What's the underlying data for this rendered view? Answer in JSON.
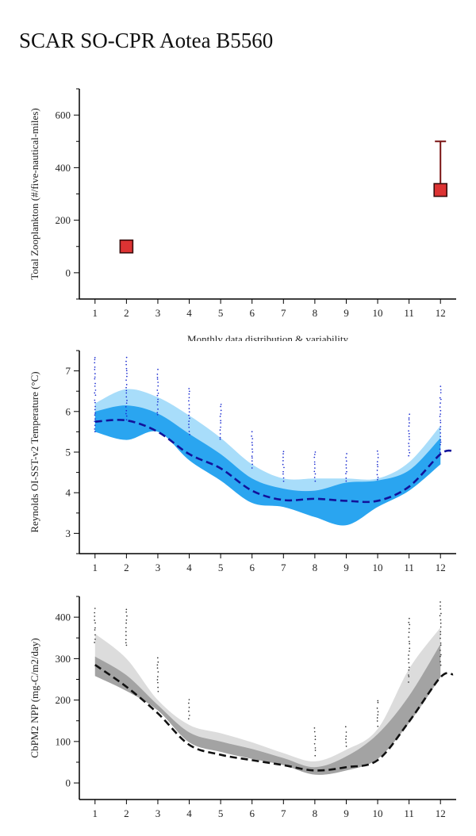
{
  "page": {
    "title": "SCAR SO-CPR Aotea B5560"
  },
  "chart_data": [
    {
      "type": "scatter",
      "ylabel": "Total Zooplankton (#/five-nautical-miles)",
      "xlabel": "Monthly data distribution & variability",
      "xticks": [
        1,
        2,
        3,
        4,
        5,
        6,
        7,
        8,
        9,
        10,
        11,
        12
      ],
      "yticks": [
        0,
        200,
        400,
        600
      ],
      "xlim": [
        0.5,
        12.5
      ],
      "ylim": [
        -100,
        700
      ],
      "points": [
        {
          "x": 2,
          "y": 100
        },
        {
          "x": 12,
          "y": 315,
          "error_upper": 500
        }
      ],
      "colors": {
        "marker": "#dd3333",
        "marker_edge": "#3a0e0e",
        "errorbar": "#7a1414"
      }
    },
    {
      "type": "area",
      "ylabel": "Reynolds OI-SST-v2 Temperature (°C)",
      "xticks": [
        1,
        2,
        3,
        4,
        5,
        6,
        7,
        8,
        9,
        10,
        11,
        12
      ],
      "yticks": [
        3,
        4,
        5,
        6,
        7
      ],
      "xlim": [
        0.5,
        12.5
      ],
      "ylim": [
        2.5,
        7.5
      ],
      "x": [
        1,
        2,
        3,
        4,
        5,
        6,
        7,
        8,
        9,
        10,
        11,
        12
      ],
      "series": [
        {
          "role": "outer-band",
          "lower": [
            5.5,
            5.3,
            5.5,
            4.8,
            4.3,
            3.75,
            3.65,
            3.4,
            3.2,
            3.65,
            4.05,
            4.7
          ],
          "upper": [
            6.2,
            6.55,
            6.35,
            5.9,
            5.35,
            4.7,
            4.35,
            4.35,
            4.35,
            4.35,
            4.75,
            5.65
          ]
        },
        {
          "role": "inner-band",
          "lower": [
            5.5,
            5.3,
            5.5,
            4.8,
            4.3,
            3.75,
            3.65,
            3.4,
            3.2,
            3.65,
            4.05,
            4.7
          ],
          "upper": [
            6.0,
            6.15,
            5.95,
            5.45,
            4.95,
            4.35,
            4.1,
            4.05,
            4.25,
            4.3,
            4.55,
            5.35
          ]
        },
        {
          "role": "mean",
          "values": [
            5.75,
            5.78,
            5.5,
            4.95,
            4.6,
            4.05,
            3.82,
            3.85,
            3.8,
            3.8,
            4.15,
            4.95
          ],
          "extension": {
            "x": 12.4,
            "y": 5.03
          }
        }
      ],
      "observations": [
        {
          "x": 1,
          "min": 5.5,
          "max": 7.35
        },
        {
          "x": 2,
          "min": 5.8,
          "max": 7.4
        },
        {
          "x": 3,
          "min": 5.9,
          "max": 7.05
        },
        {
          "x": 4,
          "min": 5.45,
          "max": 6.65
        },
        {
          "x": 5,
          "min": 5.3,
          "max": 6.2
        },
        {
          "x": 6,
          "min": 4.6,
          "max": 5.5
        },
        {
          "x": 7,
          "min": 4.3,
          "max": 5.1
        },
        {
          "x": 8,
          "min": 4.3,
          "max": 5.1
        },
        {
          "x": 9,
          "min": 4.3,
          "max": 4.95
        },
        {
          "x": 10,
          "min": 4.3,
          "max": 5.1
        },
        {
          "x": 11,
          "min": 4.9,
          "max": 5.95
        },
        {
          "x": 12,
          "min": 5.0,
          "max": 6.65
        }
      ],
      "colors": {
        "outer": "#a8ddfa",
        "inner": "#2aa5f0",
        "mean": "#12129a",
        "obs": "#1a2bd0"
      }
    },
    {
      "type": "area",
      "ylabel": "CbPM2 NPP (mg-C/m2/day)",
      "xticks": [
        1,
        2,
        3,
        4,
        5,
        6,
        7,
        8,
        9,
        10,
        11,
        12
      ],
      "yticks": [
        0,
        100,
        200,
        300,
        400
      ],
      "xlim": [
        0.5,
        12.5
      ],
      "ylim": [
        -40,
        450
      ],
      "x": [
        1,
        2,
        3,
        4,
        5,
        6,
        7,
        8,
        9,
        10,
        11,
        12
      ],
      "series": [
        {
          "role": "outer-band",
          "lower": [
            258,
            222,
            175,
            98,
            75,
            58,
            43,
            20,
            30,
            58,
            145,
            255
          ],
          "upper": [
            360,
            300,
            200,
            140,
            120,
            98,
            72,
            52,
            80,
            130,
            275,
            375
          ]
        },
        {
          "role": "inner-band",
          "lower": [
            258,
            222,
            175,
            98,
            75,
            58,
            43,
            20,
            30,
            58,
            145,
            255
          ],
          "upper": [
            305,
            260,
            188,
            122,
            100,
            82,
            60,
            38,
            64,
            118,
            210,
            335
          ]
        },
        {
          "role": "mean",
          "values": [
            285,
            232,
            168,
            92,
            68,
            55,
            43,
            30,
            38,
            55,
            148,
            255
          ],
          "extension": {
            "x": 12.4,
            "y": 262
          }
        }
      ],
      "observations": [
        {
          "x": 1,
          "min": 340,
          "max": 425
        },
        {
          "x": 2,
          "min": 330,
          "max": 425
        },
        {
          "x": 3,
          "min": 222,
          "max": 305
        },
        {
          "x": 4,
          "min": 155,
          "max": 208
        },
        {
          "x": 8,
          "min": 68,
          "max": 132
        },
        {
          "x": 9,
          "min": 88,
          "max": 138
        },
        {
          "x": 10,
          "min": 138,
          "max": 205
        },
        {
          "x": 11,
          "min": 245,
          "max": 400
        },
        {
          "x": 12,
          "min": 285,
          "max": 440
        }
      ],
      "colors": {
        "outer": "#dcdcdc",
        "inner": "#a3a3a3",
        "mean": "#111111",
        "obs": "#333333"
      }
    }
  ]
}
